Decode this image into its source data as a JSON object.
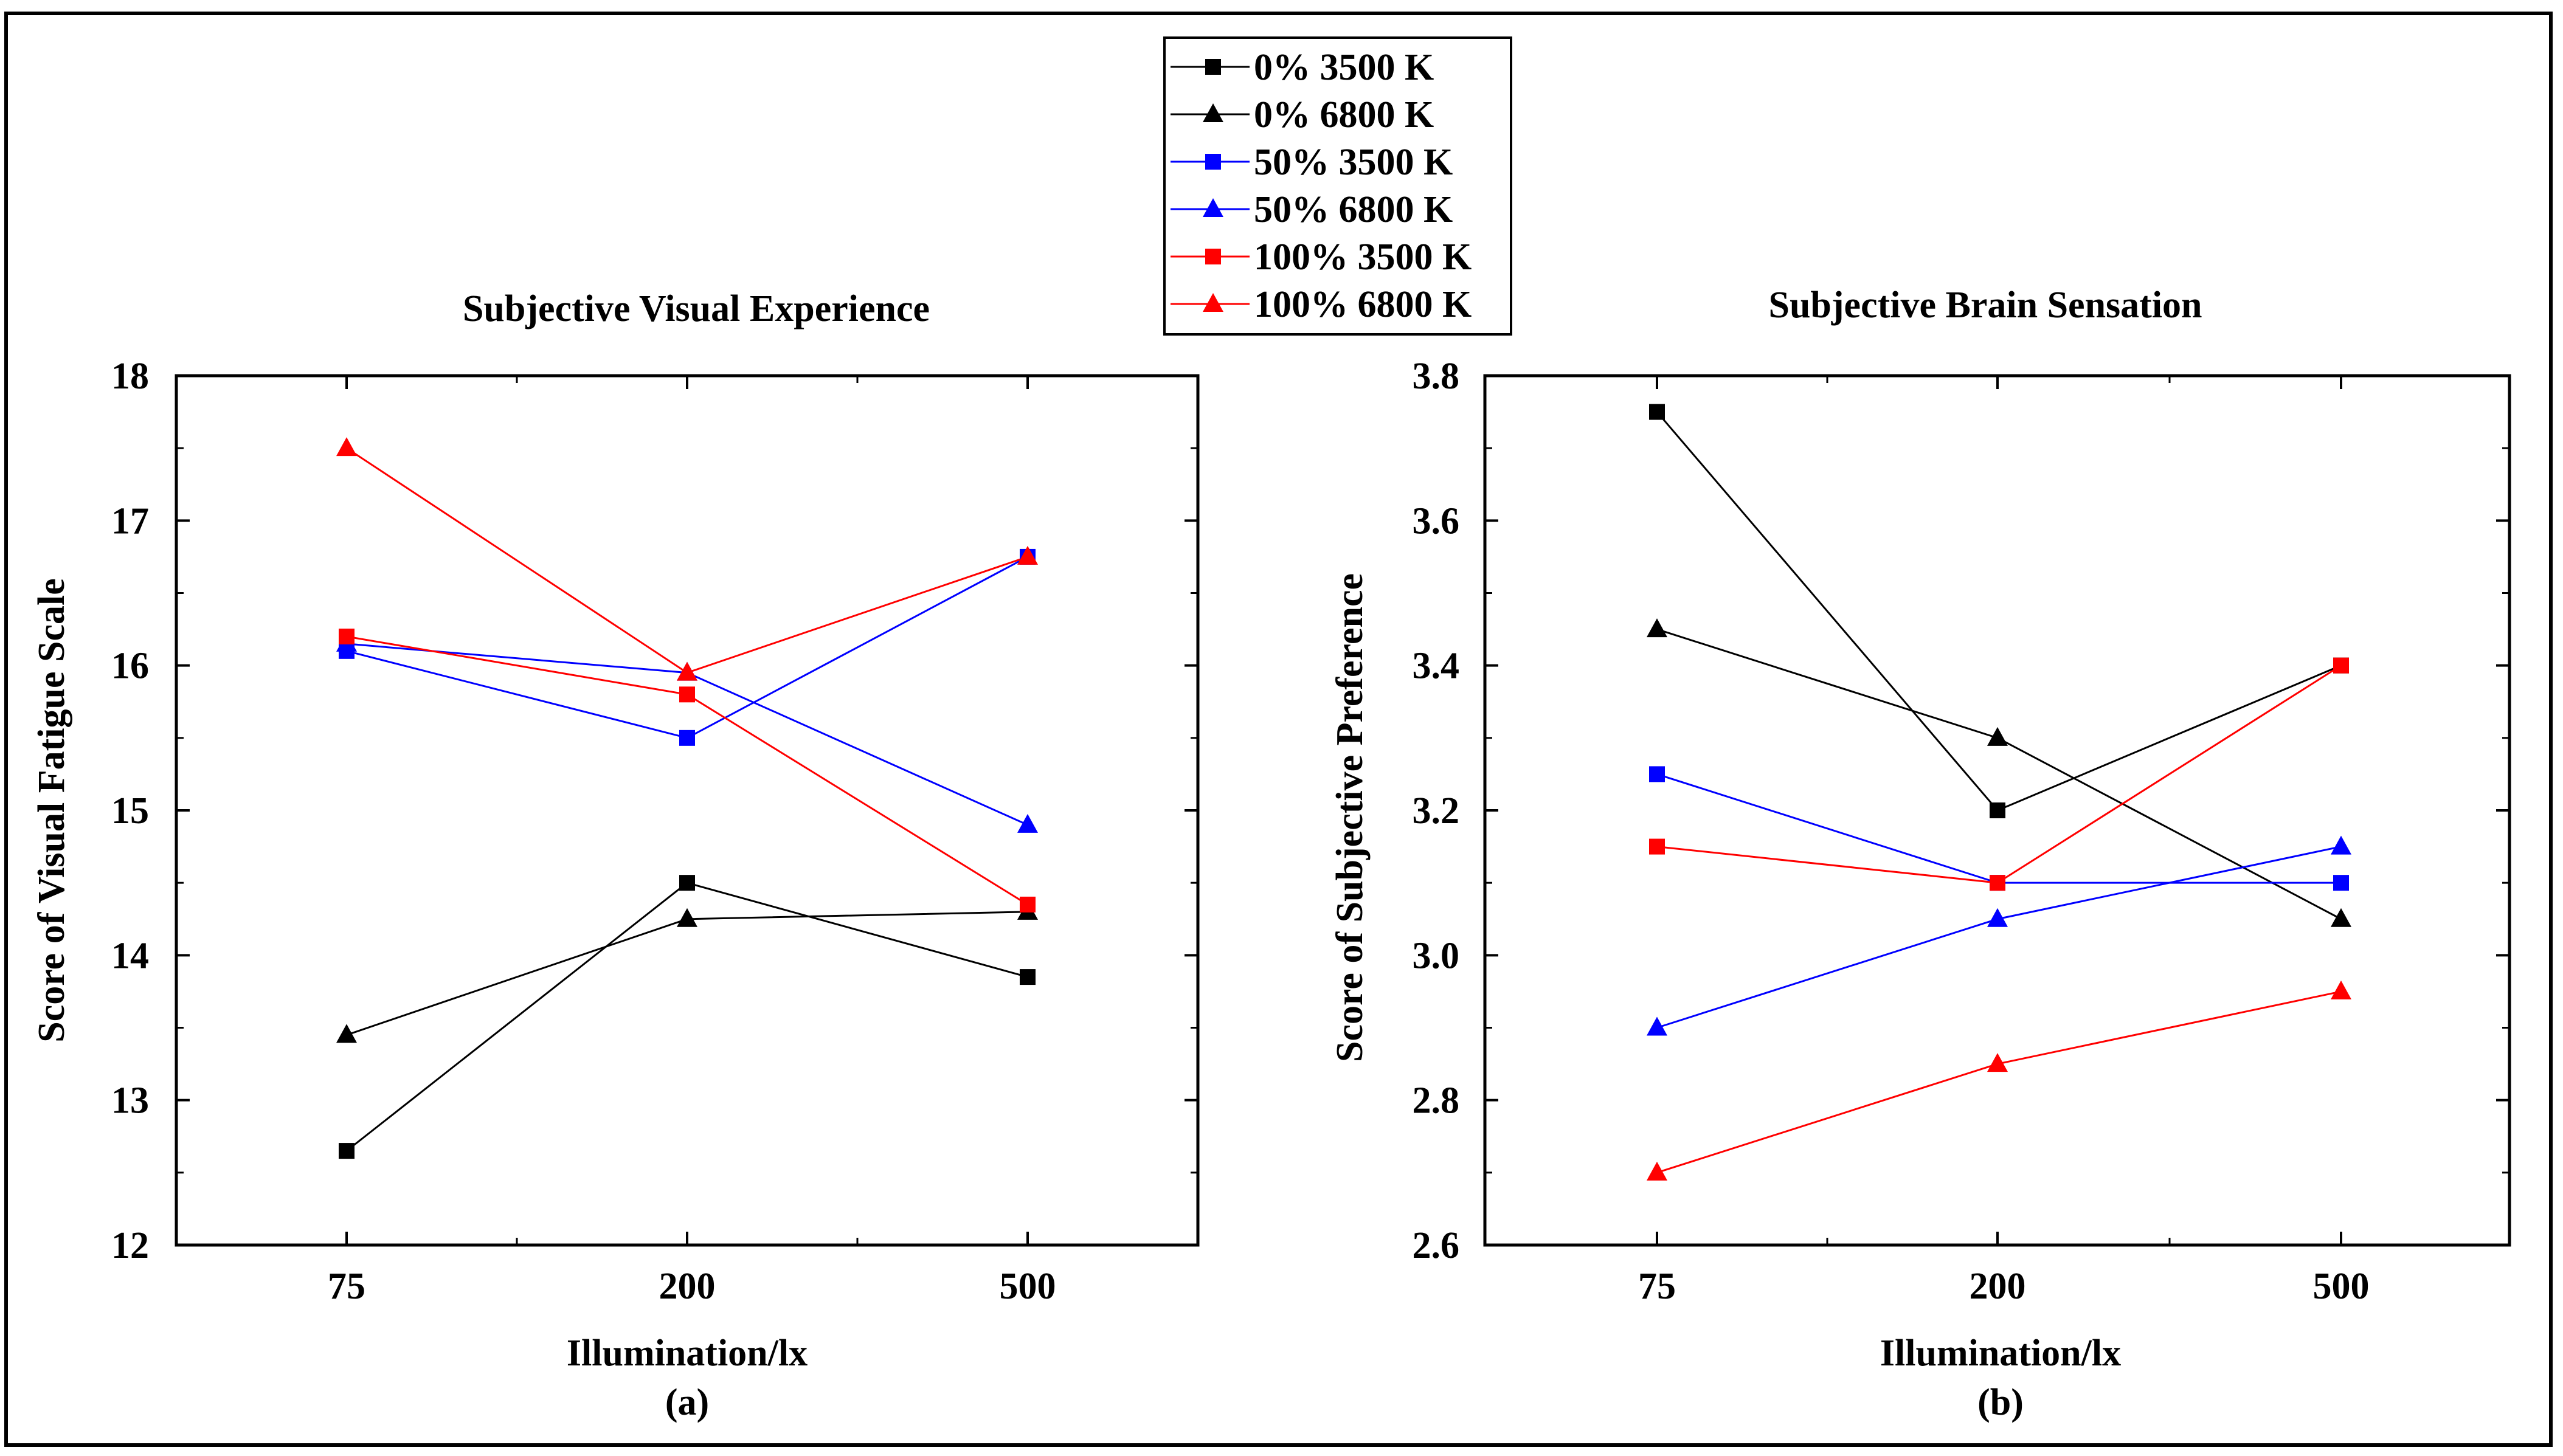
{
  "chart_data": [
    {
      "type": "line",
      "title": "Subjective Visual Experience",
      "xlabel": "Illumination/lx",
      "ylabel": "Score of Visual Fatigue Scale",
      "panel_label": "(a)",
      "categories": [
        "75",
        "200",
        "500"
      ],
      "ylim": [
        12,
        18
      ],
      "yticks": [
        "12",
        "13",
        "14",
        "15",
        "16",
        "17",
        "18"
      ],
      "series": [
        {
          "name": "0% 3500 K",
          "color": "#000000",
          "marker": "square",
          "values": [
            12.65,
            14.5,
            13.85
          ]
        },
        {
          "name": "0% 6800 K",
          "color": "#000000",
          "marker": "triangle",
          "values": [
            13.45,
            14.25,
            14.3
          ]
        },
        {
          "name": "50% 3500 K",
          "color": "#0000ff",
          "marker": "square",
          "values": [
            16.1,
            15.5,
            16.75
          ]
        },
        {
          "name": "50% 6800 K",
          "color": "#0000ff",
          "marker": "triangle",
          "values": [
            16.15,
            15.95,
            14.9
          ]
        },
        {
          "name": "100% 3500 K",
          "color": "#ff0000",
          "marker": "square",
          "values": [
            16.2,
            15.8,
            14.35
          ]
        },
        {
          "name": "100% 6800 K",
          "color": "#ff0000",
          "marker": "triangle",
          "values": [
            17.5,
            15.95,
            16.75
          ]
        }
      ]
    },
    {
      "type": "line",
      "title": "Subjective Brain Sensation",
      "xlabel": "Illumination/lx",
      "ylabel": "Score of Subjective Preference",
      "panel_label": "(b)",
      "categories": [
        "75",
        "200",
        "500"
      ],
      "ylim": [
        2.6,
        3.8
      ],
      "yticks": [
        "2.6",
        "2.8",
        "3.0",
        "3.2",
        "3.4",
        "3.6",
        "3.8"
      ],
      "series": [
        {
          "name": "0% 3500 K",
          "color": "#000000",
          "marker": "square",
          "values": [
            3.75,
            3.2,
            3.4
          ]
        },
        {
          "name": "0% 6800 K",
          "color": "#000000",
          "marker": "triangle",
          "values": [
            3.45,
            3.3,
            3.05
          ]
        },
        {
          "name": "50% 3500 K",
          "color": "#0000ff",
          "marker": "square",
          "values": [
            3.25,
            3.1,
            3.1
          ]
        },
        {
          "name": "50% 6800 K",
          "color": "#0000ff",
          "marker": "triangle",
          "values": [
            2.9,
            3.05,
            3.15
          ]
        },
        {
          "name": "100% 3500 K",
          "color": "#ff0000",
          "marker": "square",
          "values": [
            3.15,
            3.1,
            3.4
          ]
        },
        {
          "name": "100% 6800 K",
          "color": "#ff0000",
          "marker": "triangle",
          "values": [
            2.7,
            2.85,
            2.95
          ]
        }
      ]
    }
  ],
  "legend": {
    "placement": "top-center",
    "entries": [
      {
        "label": "0% 3500 K",
        "color": "#000000",
        "marker": "square"
      },
      {
        "label": "0% 6800 K",
        "color": "#000000",
        "marker": "triangle"
      },
      {
        "label": "50% 3500 K",
        "color": "#0000ff",
        "marker": "square"
      },
      {
        "label": "50% 6800 K",
        "color": "#0000ff",
        "marker": "triangle"
      },
      {
        "label": "100% 3500 K",
        "color": "#ff0000",
        "marker": "square"
      },
      {
        "label": "100% 6800 K",
        "color": "#ff0000",
        "marker": "triangle"
      }
    ]
  }
}
